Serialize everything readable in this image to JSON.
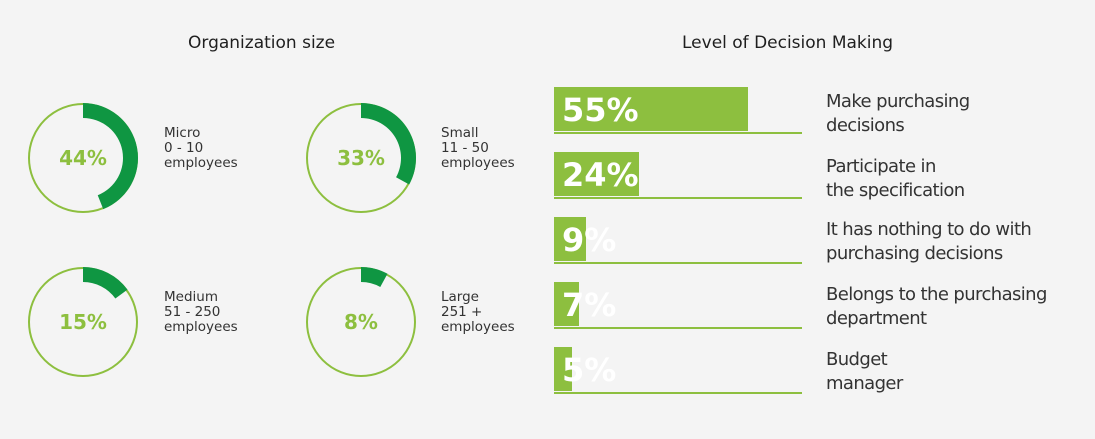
{
  "left_title": "Organization size",
  "right_title": "Level of Decision Making",
  "colors": {
    "ring": "#8dbf3f",
    "arc": "#0f9642",
    "bar": "#8dbf3f",
    "text": "#333333"
  },
  "chart_data": [
    {
      "type": "pie",
      "title": "Organization size",
      "categories": [
        "Micro",
        "Small",
        "Medium",
        "Large"
      ],
      "values": [
        44,
        33,
        15,
        8
      ],
      "labels": [
        "44%",
        "33%",
        "15%",
        "8%"
      ],
      "descriptions": [
        [
          "Micro",
          "0 - 10",
          "employees"
        ],
        [
          "Small",
          "11 - 50",
          "employees"
        ],
        [
          "Medium",
          "51 - 250",
          "employees"
        ],
        [
          "Large",
          "251 +",
          "employees"
        ]
      ]
    },
    {
      "type": "bar",
      "title": "Level of Decision Making",
      "categories": [
        "Make purchasing decisions",
        "Participate in the specification",
        "It has nothing to do with purchasing decisions",
        "Belongs to the purchasing department",
        "Budget manager"
      ],
      "values": [
        55,
        24,
        9,
        7,
        5
      ],
      "labels": [
        "55%",
        "24%",
        "9%",
        "7%",
        "5%"
      ],
      "category_lines": [
        [
          "Make purchasing",
          "decisions"
        ],
        [
          "Participate in",
          "the specification"
        ],
        [
          "It has nothing to do with",
          "purchasing decisions"
        ],
        [
          "Belongs to the purchasing",
          "department"
        ],
        [
          "Budget",
          "manager"
        ]
      ],
      "xlim": [
        0,
        100
      ]
    }
  ]
}
